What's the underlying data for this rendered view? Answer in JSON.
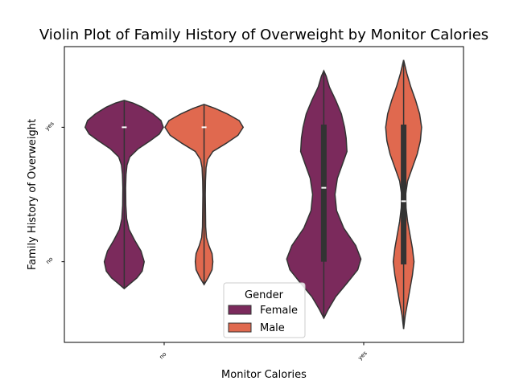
{
  "chart_data": {
    "type": "violin",
    "title": "Violin Plot of Family History of Overweight by Monitor Calories",
    "xlabel": "Monitor Calories",
    "ylabel": "Family History of Overweight",
    "categories": [
      "no",
      "yes"
    ],
    "y_categories": [
      "no",
      "yes"
    ],
    "ylim": [
      -0.6,
      1.6
    ],
    "legend": {
      "title": "Gender",
      "position": "lower-center",
      "entries": [
        {
          "name": "Female",
          "color": "#7b2a5c"
        },
        {
          "name": "Male",
          "color": "#e0694f"
        }
      ]
    },
    "series": [
      {
        "name": "Female",
        "color": "#7b2a5c",
        "violins": [
          {
            "category": "no",
            "min": -0.2,
            "max": 1.2,
            "q1": 1.0,
            "median": 1.0,
            "q3": 1.0,
            "profile": [
              [
                -0.2,
                0.0
              ],
              [
                -0.17,
                0.12
              ],
              [
                -0.12,
                0.32
              ],
              [
                -0.07,
                0.45
              ],
              [
                0.0,
                0.5
              ],
              [
                0.08,
                0.42
              ],
              [
                0.16,
                0.26
              ],
              [
                0.24,
                0.12
              ],
              [
                0.32,
                0.06
              ],
              [
                0.42,
                0.04
              ],
              [
                0.55,
                0.035
              ],
              [
                0.65,
                0.045
              ],
              [
                0.72,
                0.07
              ],
              [
                0.78,
                0.14
              ],
              [
                0.84,
                0.35
              ],
              [
                0.9,
                0.65
              ],
              [
                0.95,
                0.88
              ],
              [
                1.0,
                0.98
              ],
              [
                1.05,
                0.92
              ],
              [
                1.1,
                0.72
              ],
              [
                1.15,
                0.45
              ],
              [
                1.18,
                0.22
              ],
              [
                1.2,
                0.0
              ]
            ]
          },
          {
            "category": "yes",
            "min": -0.42,
            "max": 1.42,
            "q1": 0.0,
            "median": 0.55,
            "q3": 1.02,
            "profile": [
              [
                -0.42,
                0.0
              ],
              [
                -0.35,
                0.12
              ],
              [
                -0.26,
                0.3
              ],
              [
                -0.16,
                0.58
              ],
              [
                -0.06,
                0.85
              ],
              [
                0.02,
                0.93
              ],
              [
                0.12,
                0.8
              ],
              [
                0.25,
                0.5
              ],
              [
                0.38,
                0.32
              ],
              [
                0.5,
                0.28
              ],
              [
                0.62,
                0.34
              ],
              [
                0.72,
                0.46
              ],
              [
                0.82,
                0.58
              ],
              [
                0.92,
                0.56
              ],
              [
                1.0,
                0.52
              ],
              [
                1.1,
                0.44
              ],
              [
                1.2,
                0.3
              ],
              [
                1.3,
                0.14
              ],
              [
                1.38,
                0.06
              ],
              [
                1.42,
                0.0
              ]
            ]
          }
        ]
      },
      {
        "name": "Male",
        "color": "#e0694f",
        "violins": [
          {
            "category": "no",
            "min": -0.17,
            "max": 1.17,
            "q1": 1.0,
            "median": 1.0,
            "q3": 1.0,
            "profile": [
              [
                -0.17,
                0.0
              ],
              [
                -0.12,
                0.1
              ],
              [
                -0.06,
                0.2
              ],
              [
                0.0,
                0.22
              ],
              [
                0.06,
                0.2
              ],
              [
                0.12,
                0.12
              ],
              [
                0.18,
                0.06
              ],
              [
                0.26,
                0.04
              ],
              [
                0.38,
                0.035
              ],
              [
                0.5,
                0.03
              ],
              [
                0.6,
                0.035
              ],
              [
                0.7,
                0.05
              ],
              [
                0.76,
                0.09
              ],
              [
                0.82,
                0.22
              ],
              [
                0.88,
                0.55
              ],
              [
                0.94,
                0.85
              ],
              [
                1.0,
                0.98
              ],
              [
                1.05,
                0.88
              ],
              [
                1.1,
                0.58
              ],
              [
                1.14,
                0.28
              ],
              [
                1.17,
                0.0
              ]
            ]
          },
          {
            "category": "yes",
            "min": -0.5,
            "max": 1.5,
            "q1": -0.02,
            "median": 0.45,
            "q3": 1.02,
            "profile": [
              [
                -0.5,
                0.0
              ],
              [
                -0.4,
                0.04
              ],
              [
                -0.3,
                0.1
              ],
              [
                -0.2,
                0.16
              ],
              [
                -0.1,
                0.22
              ],
              [
                0.0,
                0.26
              ],
              [
                0.1,
                0.22
              ],
              [
                0.2,
                0.16
              ],
              [
                0.3,
                0.1
              ],
              [
                0.4,
                0.06
              ],
              [
                0.5,
                0.05
              ],
              [
                0.6,
                0.1
              ],
              [
                0.7,
                0.22
              ],
              [
                0.8,
                0.34
              ],
              [
                0.9,
                0.42
              ],
              [
                1.0,
                0.45
              ],
              [
                1.1,
                0.4
              ],
              [
                1.2,
                0.3
              ],
              [
                1.3,
                0.18
              ],
              [
                1.4,
                0.08
              ],
              [
                1.5,
                0.0
              ]
            ]
          }
        ]
      }
    ]
  }
}
